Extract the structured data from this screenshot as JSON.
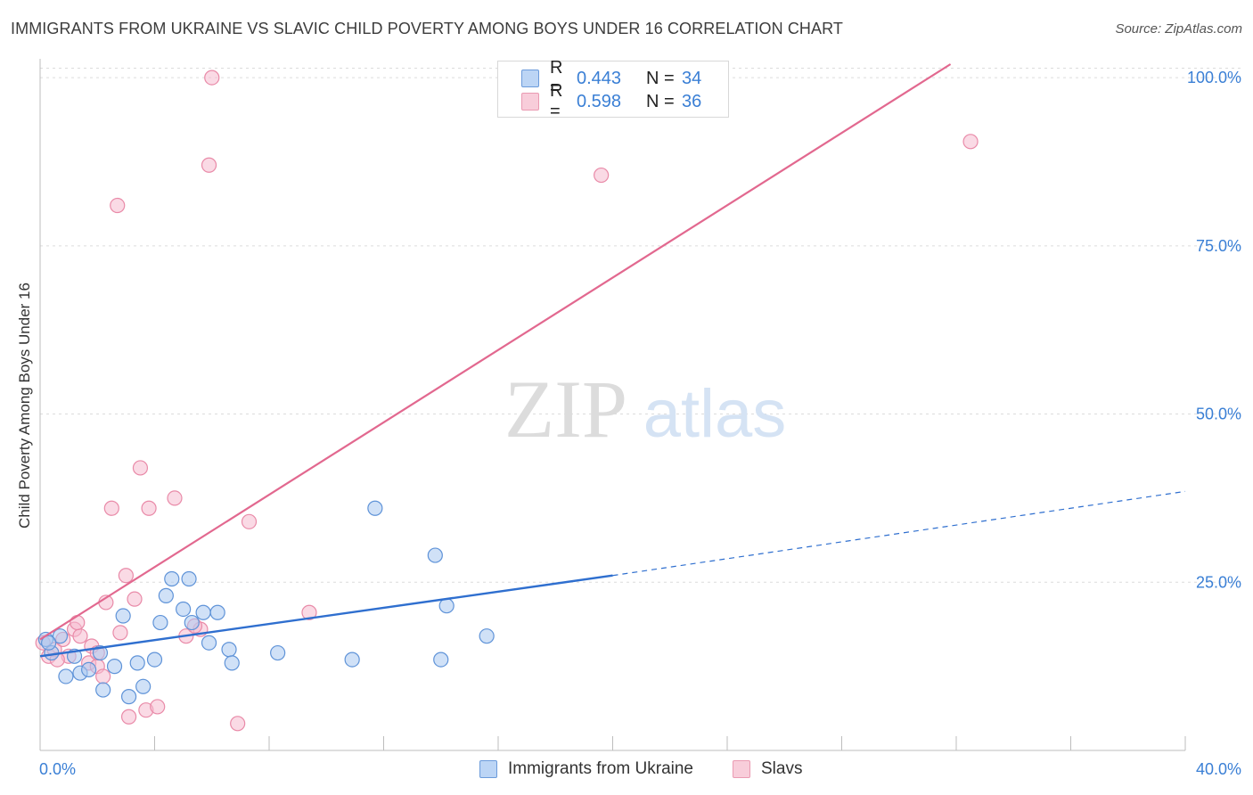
{
  "title": "IMMIGRANTS FROM UKRAINE VS SLAVIC CHILD POVERTY AMONG BOYS UNDER 16 CORRELATION CHART",
  "source": "Source: ZipAtlas.com",
  "watermark": {
    "zip": "ZIP",
    "atlas": "atlas"
  },
  "legend": {
    "series1": {
      "r_label": "R = ",
      "r_value": "0.443",
      "n_label": "N = ",
      "n_value": "34"
    },
    "series2": {
      "r_label": "R = ",
      "r_value": "0.598",
      "n_label": "N = ",
      "n_value": "36"
    }
  },
  "bottom_legend": {
    "series1": "Immigrants from Ukraine",
    "series2": "Slavs"
  },
  "colors": {
    "blue_fill": "#aac8f0",
    "blue_stroke": "#5f93d8",
    "blue_line": "#2f6fcf",
    "pink_fill": "#f6bccf",
    "pink_stroke": "#e98aa8",
    "pink_line": "#e2688f",
    "tick_text": "#3a7fd5",
    "grid": "#dcdcdc"
  },
  "chart_data": {
    "type": "scatter",
    "title": "IMMIGRANTS FROM UKRAINE VS SLAVIC CHILD POVERTY AMONG BOYS UNDER 16 CORRELATION CHART",
    "xlabel": "",
    "ylabel": "Child Poverty Among Boys Under 16",
    "xlim": [
      0,
      40
    ],
    "ylim": [
      0,
      102
    ],
    "x_tick_labels": [
      "0.0%",
      "40.0%"
    ],
    "y_ticks": [
      25,
      50,
      75,
      100
    ],
    "y_tick_labels": [
      "25.0%",
      "50.0%",
      "75.0%",
      "100.0%"
    ],
    "grid": true,
    "series": [
      {
        "name": "Immigrants from Ukraine",
        "r": 0.443,
        "n": 34,
        "points": [
          [
            0.2,
            16.5
          ],
          [
            0.4,
            14.5
          ],
          [
            0.7,
            17.0
          ],
          [
            0.9,
            11.0
          ],
          [
            1.2,
            14.0
          ],
          [
            1.4,
            11.5
          ],
          [
            1.7,
            12.0
          ],
          [
            2.1,
            14.5
          ],
          [
            2.2,
            9.0
          ],
          [
            2.6,
            12.5
          ],
          [
            2.9,
            20.0
          ],
          [
            3.1,
            8.0
          ],
          [
            3.4,
            13.0
          ],
          [
            3.6,
            9.5
          ],
          [
            4.0,
            13.5
          ],
          [
            4.2,
            19.0
          ],
          [
            4.4,
            23.0
          ],
          [
            4.6,
            25.5
          ],
          [
            5.0,
            21.0
          ],
          [
            5.2,
            25.5
          ],
          [
            5.3,
            19.0
          ],
          [
            5.7,
            20.5
          ],
          [
            5.9,
            16.0
          ],
          [
            6.2,
            20.5
          ],
          [
            6.6,
            15.0
          ],
          [
            6.7,
            13.0
          ],
          [
            8.3,
            14.5
          ],
          [
            10.9,
            13.5
          ],
          [
            11.7,
            36.0
          ],
          [
            13.8,
            29.0
          ],
          [
            14.0,
            13.5
          ],
          [
            14.2,
            21.5
          ],
          [
            15.6,
            17.0
          ],
          [
            0.3,
            16.0
          ]
        ],
        "trend": {
          "x0": 0,
          "y0": 14.0,
          "x1": 20,
          "y1": 26.0,
          "dashed_to_x": 40,
          "dashed_to_y": 38.5
        }
      },
      {
        "name": "Slavs",
        "r": 0.598,
        "n": 36,
        "points": [
          [
            0.1,
            16.0
          ],
          [
            0.3,
            14.0
          ],
          [
            0.5,
            15.0
          ],
          [
            0.8,
            16.5
          ],
          [
            1.0,
            14.0
          ],
          [
            1.2,
            18.0
          ],
          [
            1.4,
            17.0
          ],
          [
            1.7,
            13.0
          ],
          [
            1.8,
            15.5
          ],
          [
            2.0,
            12.5
          ],
          [
            2.2,
            11.0
          ],
          [
            2.3,
            22.0
          ],
          [
            2.5,
            36.0
          ],
          [
            2.7,
            81.0
          ],
          [
            2.8,
            17.5
          ],
          [
            3.0,
            26.0
          ],
          [
            3.1,
            5.0
          ],
          [
            3.3,
            22.5
          ],
          [
            3.5,
            42.0
          ],
          [
            3.7,
            6.0
          ],
          [
            3.8,
            36.0
          ],
          [
            4.1,
            6.5
          ],
          [
            4.7,
            37.5
          ],
          [
            5.1,
            17.0
          ],
          [
            5.6,
            18.0
          ],
          [
            5.9,
            87.0
          ],
          [
            6.0,
            100.0
          ],
          [
            6.9,
            4.0
          ],
          [
            7.3,
            34.0
          ],
          [
            9.4,
            20.5
          ],
          [
            19.6,
            85.5
          ],
          [
            32.5,
            90.5
          ],
          [
            1.3,
            19.0
          ],
          [
            0.6,
            13.5
          ],
          [
            2.0,
            14.5
          ],
          [
            5.4,
            18.5
          ]
        ],
        "trend": {
          "x0": 0,
          "y0": 16.5,
          "x1": 31.8,
          "y1": 102
        }
      }
    ]
  }
}
